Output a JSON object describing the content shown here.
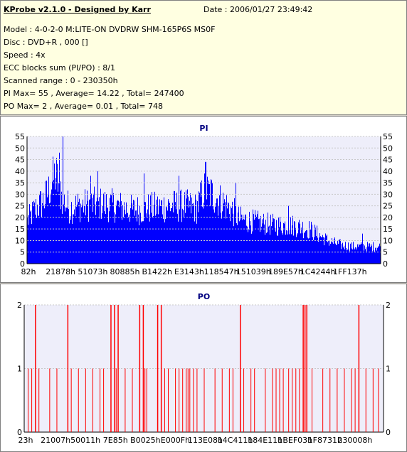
{
  "header": {
    "title": "KProbe v2.1.0 - Designed by Karr",
    "date": "Date : 2006/01/27 23:49:42",
    "model": "Model : 4-0-2-0 M:LITE-ON DVDRW SHM-165P6S MS0F",
    "disc": "Disc : DVD+R , 000 []",
    "speed": "Speed : 4x",
    "ecc": "ECC blocks sum (PI/PO) : 8/1",
    "range": "Scanned range : 0 - 230350h",
    "pi_stats": "PI Max= 55 , Average= 14.22 , Total= 247400",
    "po_stats": "PO Max= 2 , Average= 0.01 , Total= 748"
  },
  "colors": {
    "pi_bar": "#0000ff",
    "po_bar": "#ff0000",
    "plot_bg": "#eeeefa",
    "grid": "#c8c8c8",
    "title": "#000080"
  },
  "chart_data": [
    {
      "type": "area",
      "title": "PI",
      "xlabel": "",
      "ylabel": "",
      "ylim": [
        0,
        55
      ],
      "yticks": [
        0,
        5,
        10,
        15,
        20,
        25,
        30,
        35,
        40,
        45,
        50,
        55
      ],
      "xtick_labels": [
        "82h",
        "21878h",
        "51073h",
        "80885h",
        "B1422h",
        "E3143h",
        "118547h",
        "151039h",
        "189E57h",
        "1C4244h",
        "1FF137h"
      ],
      "profile_x": [
        0,
        0.02,
        0.05,
        0.08,
        0.1,
        0.12,
        0.14,
        0.2,
        0.25,
        0.3,
        0.35,
        0.4,
        0.45,
        0.48,
        0.5,
        0.52,
        0.55,
        0.58,
        0.6,
        0.63,
        0.66,
        0.7,
        0.75,
        0.8,
        0.83,
        0.85,
        0.88,
        0.92,
        0.96,
        1.0
      ],
      "profile_y": [
        20,
        25,
        30,
        42,
        30,
        26,
        27,
        28,
        27,
        25,
        26,
        27,
        27,
        26,
        34,
        33,
        29,
        25,
        21,
        20,
        19,
        18,
        18,
        16,
        13,
        11,
        9,
        8,
        8,
        8
      ],
      "peaks": [
        [
          0.1,
          55
        ],
        [
          0.09,
          48
        ],
        [
          0.505,
          44
        ],
        [
          0.2,
          40
        ],
        [
          0.33,
          39
        ],
        [
          0.18,
          38
        ],
        [
          0.43,
          38
        ],
        [
          0.59,
          35
        ],
        [
          0.74,
          25
        ],
        [
          0.95,
          13
        ]
      ]
    },
    {
      "type": "bar",
      "title": "PO",
      "xlabel": "",
      "ylabel": "",
      "ylim": [
        0,
        2
      ],
      "yticks": [
        0,
        1,
        2
      ],
      "xtick_labels": [
        "23h",
        "21007h",
        "50011h",
        "7E85h",
        "B0025h",
        "E000Fh",
        "113E08h",
        "14C411h",
        "184E11h",
        "1BEF03h",
        "1F8731h",
        "230008h"
      ],
      "spikes": [
        [
          0.01,
          1
        ],
        [
          0.02,
          1
        ],
        [
          0.03,
          2
        ],
        [
          0.04,
          1
        ],
        [
          0.07,
          1
        ],
        [
          0.09,
          1
        ],
        [
          0.12,
          2
        ],
        [
          0.13,
          1
        ],
        [
          0.15,
          1
        ],
        [
          0.17,
          1
        ],
        [
          0.19,
          1
        ],
        [
          0.21,
          1
        ],
        [
          0.22,
          1
        ],
        [
          0.24,
          2
        ],
        [
          0.25,
          2
        ],
        [
          0.255,
          1
        ],
        [
          0.26,
          2
        ],
        [
          0.28,
          1
        ],
        [
          0.3,
          1
        ],
        [
          0.32,
          2
        ],
        [
          0.33,
          2
        ],
        [
          0.335,
          1
        ],
        [
          0.34,
          1
        ],
        [
          0.37,
          2
        ],
        [
          0.38,
          2
        ],
        [
          0.39,
          1
        ],
        [
          0.4,
          1
        ],
        [
          0.42,
          1
        ],
        [
          0.43,
          1
        ],
        [
          0.44,
          1
        ],
        [
          0.45,
          1
        ],
        [
          0.455,
          1
        ],
        [
          0.46,
          1
        ],
        [
          0.47,
          1
        ],
        [
          0.48,
          1
        ],
        [
          0.5,
          1
        ],
        [
          0.53,
          1
        ],
        [
          0.55,
          1
        ],
        [
          0.57,
          1
        ],
        [
          0.58,
          1
        ],
        [
          0.6,
          2
        ],
        [
          0.61,
          1
        ],
        [
          0.63,
          1
        ],
        [
          0.64,
          1
        ],
        [
          0.67,
          1
        ],
        [
          0.69,
          1
        ],
        [
          0.7,
          1
        ],
        [
          0.71,
          1
        ],
        [
          0.72,
          1
        ],
        [
          0.735,
          1
        ],
        [
          0.745,
          1
        ],
        [
          0.755,
          1
        ],
        [
          0.765,
          1
        ],
        [
          0.775,
          2
        ],
        [
          0.78,
          2
        ],
        [
          0.785,
          2
        ],
        [
          0.8,
          1
        ],
        [
          0.83,
          1
        ],
        [
          0.85,
          1
        ],
        [
          0.87,
          1
        ],
        [
          0.89,
          1
        ],
        [
          0.91,
          1
        ],
        [
          0.92,
          1
        ],
        [
          0.93,
          2
        ],
        [
          0.95,
          1
        ],
        [
          0.97,
          1
        ],
        [
          0.985,
          1
        ]
      ]
    }
  ]
}
